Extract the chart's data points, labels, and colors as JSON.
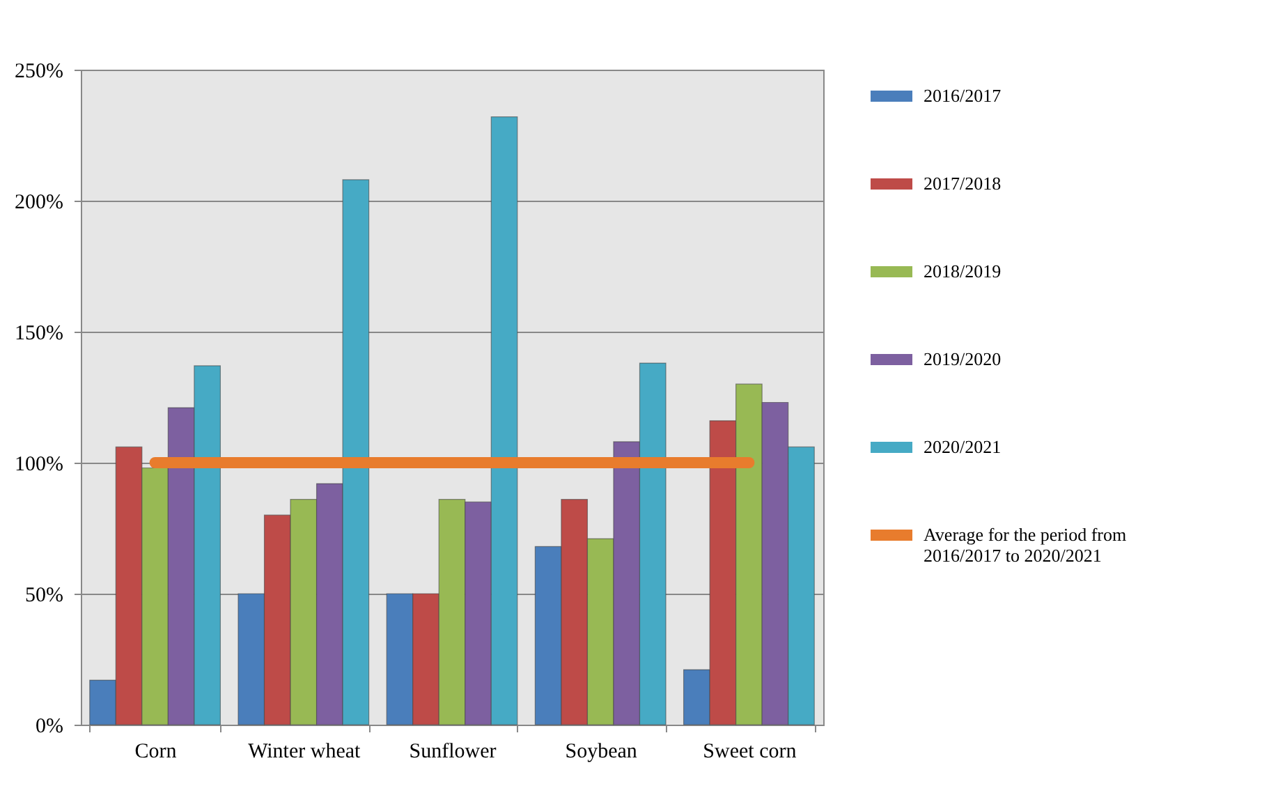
{
  "chart_data": {
    "type": "bar",
    "categories": [
      "Corn",
      "Winter wheat",
      "Sunflower",
      "Soybean",
      "Sweet corn"
    ],
    "series": [
      {
        "name": "2016/2017",
        "color": "#4a7ebb",
        "values": [
          17,
          50,
          50,
          68,
          21
        ]
      },
      {
        "name": "2017/2018",
        "color": "#be4b48",
        "values": [
          106,
          80,
          50,
          86,
          116
        ]
      },
      {
        "name": "2018/2019",
        "color": "#98b954",
        "values": [
          98,
          86,
          86,
          71,
          130
        ]
      },
      {
        "name": "2019/2020",
        "color": "#7d60a0",
        "values": [
          121,
          92,
          85,
          108,
          123
        ]
      },
      {
        "name": "2020/2021",
        "color": "#46aac5",
        "values": [
          137,
          208,
          232,
          138,
          106
        ]
      },
      {
        "name": "Average for the period from 2016/2017 to 2020/2021",
        "color": "#e87c2d",
        "type": "line",
        "values": [
          100,
          100,
          100,
          100,
          100
        ]
      }
    ],
    "ylim": [
      0,
      250
    ],
    "yticks": [
      {
        "value": 0,
        "label": "0%"
      },
      {
        "value": 50,
        "label": "50%"
      },
      {
        "value": 100,
        "label": "100%"
      },
      {
        "value": 150,
        "label": "150%"
      },
      {
        "value": 200,
        "label": "200%"
      },
      {
        "value": 250,
        "label": "250%"
      }
    ],
    "grid": "y",
    "legend": "right"
  }
}
